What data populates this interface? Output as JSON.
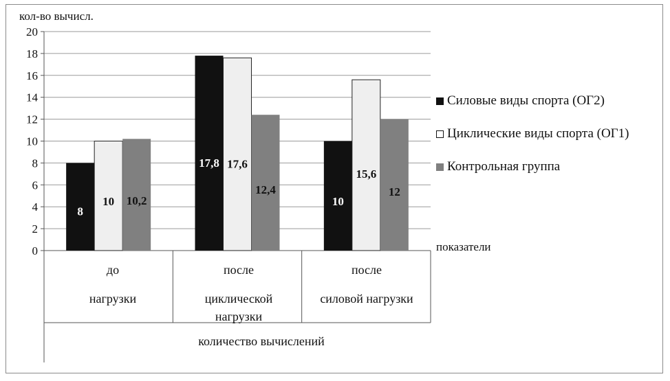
{
  "chart_data": {
    "type": "bar",
    "y_axis_label": "кол-во вычисл.",
    "x_axis_label": "показатели",
    "group_label": "количество вычислений",
    "ylim": [
      0,
      20
    ],
    "y_ticks": [
      "0",
      "2",
      "4",
      "6",
      "8",
      "10",
      "12",
      "14",
      "16",
      "18",
      "20"
    ],
    "grid": true,
    "legend_position": "right",
    "categories": [
      {
        "line1": "до",
        "line2": "нагрузки"
      },
      {
        "line1": "после",
        "line2": "циклической нагрузки"
      },
      {
        "line1": "после",
        "line2": "силовой нагрузки"
      }
    ],
    "series": [
      {
        "name": "Силовые виды спорта (ОГ2)",
        "values": [
          8,
          17.8,
          10
        ],
        "labels": [
          "8",
          "17,8",
          "10"
        ],
        "color": "#111111",
        "label_color": "#ffffff"
      },
      {
        "name": "Циклические виды спорта (ОГ1)",
        "values": [
          10,
          17.6,
          15.6
        ],
        "labels": [
          "10",
          "17,6",
          "15,6"
        ],
        "color": "#efefef",
        "label_color": "#111111"
      },
      {
        "name": "Контрольная группа",
        "values": [
          10.2,
          12.4,
          12
        ],
        "labels": [
          "10,2",
          "12,4",
          "12"
        ],
        "color": "#808080",
        "label_color": "#111111"
      }
    ]
  }
}
